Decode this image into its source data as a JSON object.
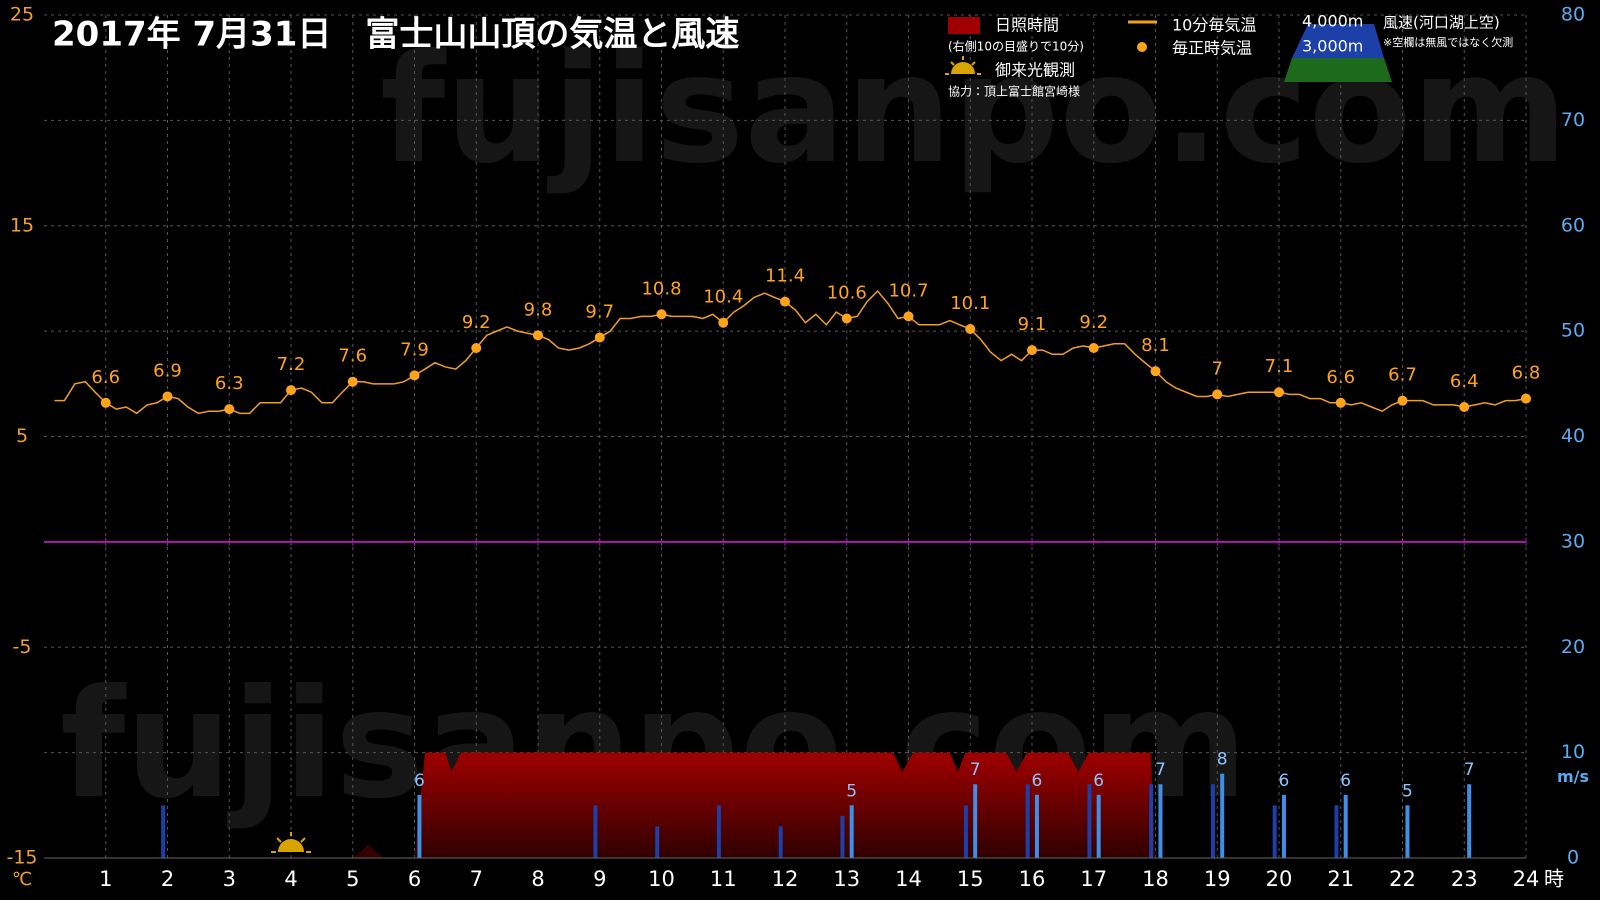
{
  "chart_data": {
    "type": "combo",
    "title": "2017年 7月31日　富士山山頂の気温と風速",
    "watermark": "fujisanpo.com",
    "xlim": [
      0,
      24
    ],
    "xticks": [
      1,
      2,
      3,
      4,
      5,
      6,
      7,
      8,
      9,
      10,
      11,
      12,
      13,
      14,
      15,
      16,
      17,
      18,
      19,
      20,
      21,
      22,
      23,
      24
    ],
    "x_unit": "時",
    "ylim": [
      -15,
      25
    ],
    "yticks": [
      25,
      15,
      5,
      -5,
      -15
    ],
    "y_unit": "℃",
    "y2lim": [
      0,
      80
    ],
    "y2ticks": [
      80,
      70,
      60,
      50,
      40,
      30,
      20,
      10,
      0
    ],
    "y2_unit": "m/s",
    "grid": true,
    "hline": {
      "value": 0,
      "color": "#a020a8"
    },
    "legend_note": "(右側10の目盛りで10分)",
    "sunrise_label": "御来光観測",
    "sunrise_x": 4,
    "credit": "協力：頂上富士館宮崎様",
    "wind_title": "風速(河口湖上空)",
    "wind_note": "※空欄は無風ではなく欠測",
    "series": [
      {
        "name": "10分毎気温",
        "type": "line",
        "color": "#f0a020",
        "x": [
          0.17,
          0.33,
          0.5,
          0.67,
          0.83,
          1,
          1.17,
          1.33,
          1.5,
          1.67,
          1.83,
          2,
          2.17,
          2.33,
          2.5,
          2.67,
          2.83,
          3,
          3.17,
          3.33,
          3.5,
          3.67,
          3.83,
          4,
          4.17,
          4.33,
          4.5,
          4.67,
          4.83,
          5,
          5.17,
          5.33,
          5.5,
          5.67,
          5.83,
          6,
          6.17,
          6.33,
          6.5,
          6.67,
          6.83,
          7,
          7.17,
          7.33,
          7.5,
          7.67,
          7.83,
          8,
          8.17,
          8.33,
          8.5,
          8.67,
          8.83,
          9,
          9.17,
          9.33,
          9.5,
          9.67,
          9.83,
          10,
          10.17,
          10.33,
          10.5,
          10.67,
          10.83,
          11,
          11.17,
          11.33,
          11.5,
          11.67,
          11.83,
          12,
          12.17,
          12.33,
          12.5,
          12.67,
          12.83,
          13,
          13.17,
          13.33,
          13.5,
          13.67,
          13.83,
          14,
          14.17,
          14.33,
          14.5,
          14.67,
          14.83,
          15,
          15.17,
          15.33,
          15.5,
          15.67,
          15.83,
          16,
          16.17,
          16.33,
          16.5,
          16.67,
          16.83,
          17,
          17.17,
          17.33,
          17.5,
          17.67,
          17.83,
          18,
          18.17,
          18.33,
          18.5,
          18.67,
          18.83,
          19,
          19.17,
          19.33,
          19.5,
          19.67,
          19.83,
          20,
          20.17,
          20.33,
          20.5,
          20.67,
          20.83,
          21,
          21.17,
          21.33,
          21.5,
          21.67,
          21.83,
          22,
          22.17,
          22.33,
          22.5,
          22.67,
          22.83,
          23,
          23.17,
          23.33,
          23.5,
          23.67,
          23.83,
          24
        ],
        "values": [
          6.7,
          6.7,
          7.5,
          7.6,
          7.1,
          6.6,
          6.3,
          6.4,
          6.1,
          6.5,
          6.6,
          6.9,
          6.8,
          6.4,
          6.1,
          6.2,
          6.2,
          6.3,
          6.1,
          6.1,
          6.6,
          6.6,
          6.6,
          7.2,
          7.3,
          7.1,
          6.6,
          6.6,
          7.1,
          7.6,
          7.6,
          7.5,
          7.5,
          7.5,
          7.6,
          7.9,
          8.2,
          8.5,
          8.3,
          8.2,
          8.6,
          9.2,
          9.8,
          10.0,
          10.2,
          10.0,
          9.9,
          9.8,
          9.6,
          9.2,
          9.1,
          9.2,
          9.4,
          9.7,
          10.0,
          10.6,
          10.6,
          10.7,
          10.7,
          10.8,
          10.7,
          10.7,
          10.7,
          10.6,
          10.8,
          10.4,
          10.9,
          11.2,
          11.6,
          11.8,
          11.6,
          11.4,
          11.0,
          10.4,
          10.8,
          10.3,
          10.9,
          10.6,
          10.7,
          11.4,
          11.9,
          11.3,
          10.6,
          10.7,
          10.3,
          10.3,
          10.3,
          10.5,
          10.3,
          10.1,
          9.6,
          9.0,
          8.6,
          8.9,
          8.6,
          9.1,
          9.1,
          8.9,
          8.9,
          9.2,
          9.3,
          9.2,
          9.3,
          9.4,
          9.4,
          8.9,
          8.5,
          8.1,
          7.6,
          7.3,
          7.1,
          6.9,
          6.9,
          7.0,
          6.9,
          7.0,
          7.1,
          7.1,
          7.1,
          7.1,
          7.0,
          7.0,
          6.8,
          6.8,
          6.6,
          6.6,
          6.5,
          6.6,
          6.4,
          6.2,
          6.5,
          6.7,
          6.7,
          6.7,
          6.5,
          6.5,
          6.5,
          6.4,
          6.5,
          6.6,
          6.5,
          6.7,
          6.7,
          6.8
        ]
      },
      {
        "name": "毎正時気温",
        "type": "scatter",
        "color": "#ffa31a",
        "x": [
          1,
          2,
          3,
          4,
          5,
          6,
          7,
          8,
          9,
          10,
          11,
          12,
          13,
          14,
          15,
          16,
          17,
          18,
          19,
          20,
          21,
          22,
          23,
          24
        ],
        "values": [
          6.6,
          6.9,
          6.3,
          7.2,
          7.6,
          7.9,
          9.2,
          9.8,
          9.7,
          10.8,
          10.4,
          11.4,
          10.6,
          10.7,
          10.1,
          9.1,
          9.2,
          8.1,
          7,
          7.1,
          6.6,
          6.7,
          6.4,
          6.8
        ]
      },
      {
        "name": "日照時間",
        "type": "area",
        "axis": "y2",
        "color": "#a00000",
        "x": [
          5.0,
          5.25,
          5.5,
          6.0,
          6.17,
          6.5,
          6.6,
          6.75,
          13.75,
          13.9,
          14.08,
          14.67,
          14.8,
          14.92,
          15.58,
          15.75,
          15.92,
          16.58,
          16.75,
          16.92,
          17.92,
          18.0
        ],
        "values": [
          0,
          1.2,
          0,
          0,
          10,
          10,
          8.2,
          10,
          10,
          8.2,
          10,
          10,
          8.2,
          10,
          10,
          8.2,
          10,
          10,
          8.2,
          10,
          10,
          0
        ]
      },
      {
        "name": "4,000m",
        "type": "bar",
        "axis": "y2",
        "color": "#1c3fa8",
        "x": [
          2,
          9,
          10,
          11,
          12,
          13,
          15,
          16,
          17,
          18,
          19,
          20,
          21
        ],
        "values": [
          5,
          5,
          3,
          5,
          3,
          4,
          5,
          7,
          7,
          7,
          7,
          5,
          5
        ]
      },
      {
        "name": "3,000m",
        "type": "bar",
        "axis": "y2",
        "color": "#3f8fe6",
        "labels": true,
        "x": [
          6,
          13,
          15,
          16,
          17,
          18,
          19,
          20,
          21,
          22,
          23
        ],
        "values": [
          6,
          5,
          7,
          6,
          6,
          7,
          8,
          6,
          6,
          5,
          7
        ]
      }
    ]
  }
}
